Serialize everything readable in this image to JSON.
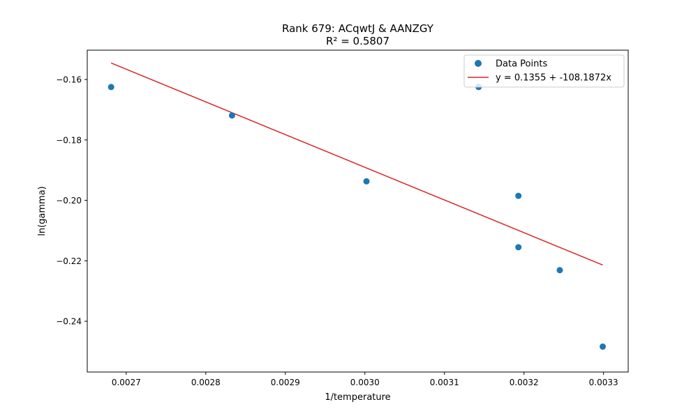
{
  "chart_data": {
    "type": "scatter",
    "title": "Rank 679: ACqwtJ & AANZGY",
    "subtitle": "R² = 0.5807",
    "xlabel": "1/temperature",
    "ylabel": "ln(gamma)",
    "xlim": [
      0.002651,
      0.003331
    ],
    "ylim": [
      -0.2568,
      -0.1503
    ],
    "x_ticks": [
      0.0027,
      0.0028,
      0.0029,
      0.003,
      0.0031,
      0.0032,
      0.0033
    ],
    "x_tick_labels": [
      "0.0027",
      "0.0028",
      "0.0029",
      "0.0030",
      "0.0031",
      "0.0032",
      "0.0033"
    ],
    "y_ticks": [
      -0.16,
      -0.18,
      -0.2,
      -0.22,
      -0.24
    ],
    "y_tick_labels": [
      "−0.16",
      "−0.18",
      "−0.20",
      "−0.22",
      "−0.24"
    ],
    "grid": false,
    "legend_position": "top-right",
    "series": [
      {
        "name": "Data Points",
        "kind": "scatter",
        "color": "#1f77b4",
        "x": [
          0.002681,
          0.002833,
          0.003002,
          0.003143,
          0.003193,
          0.003193,
          0.003245,
          0.003299
        ],
        "y": [
          -0.1625,
          -0.1719,
          -0.1937,
          -0.1625,
          -0.1985,
          -0.2155,
          -0.2231,
          -0.2484
        ]
      },
      {
        "name": "y = 0.1355 + -108.1872x",
        "kind": "line",
        "color": "#d62728",
        "intercept": 0.1355,
        "slope": -108.1872,
        "x_range": [
          0.002681,
          0.003299
        ]
      }
    ]
  }
}
